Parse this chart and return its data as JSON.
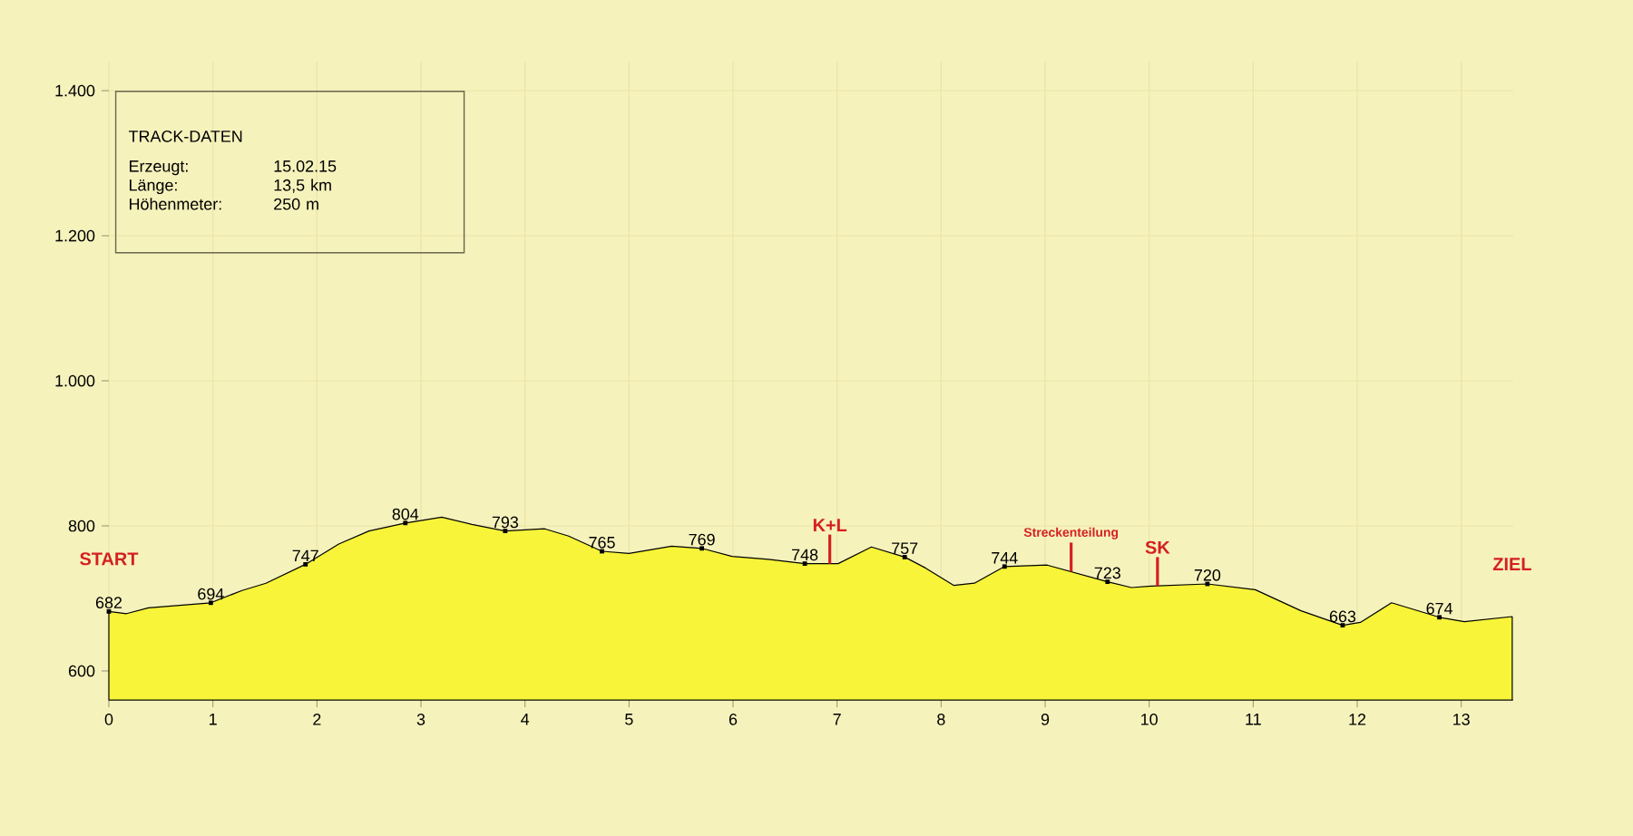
{
  "chart_data": {
    "type": "area",
    "color": "#f7f43a",
    "x": [
      0,
      0.17,
      0.38,
      0.98,
      1.28,
      1.51,
      1.89,
      2.21,
      2.5,
      2.85,
      3.2,
      3.49,
      3.81,
      4.19,
      4.42,
      4.74,
      5.0,
      5.41,
      5.7,
      5.99,
      6.34,
      6.69,
      7.01,
      7.33,
      7.65,
      7.85,
      8.12,
      8.32,
      8.61,
      9.02,
      9.6,
      9.83,
      10.02,
      10.56,
      11.02,
      11.46,
      11.86,
      12.03,
      12.33,
      12.79,
      13.03,
      13.49
    ],
    "values": [
      682,
      679,
      687,
      694,
      711,
      721,
      747,
      775,
      793,
      804,
      812,
      802,
      793,
      796,
      786,
      765,
      762,
      772,
      769,
      758,
      754,
      748,
      748,
      771,
      757,
      742,
      718,
      721,
      744,
      746,
      723,
      715,
      717,
      720,
      712,
      683,
      663,
      667,
      694,
      674,
      668,
      675
    ],
    "value_labels": [
      "682",
      null,
      null,
      "694",
      null,
      null,
      "747",
      null,
      null,
      "804",
      null,
      null,
      "793",
      null,
      null,
      "765",
      null,
      null,
      "769",
      null,
      null,
      "748",
      null,
      null,
      "757",
      null,
      null,
      null,
      "744",
      null,
      "723",
      null,
      null,
      "720",
      null,
      null,
      "663",
      null,
      null,
      "674",
      null,
      null
    ],
    "xlim": [
      0,
      13.5
    ],
    "xticks": [
      0,
      1,
      2,
      3,
      4,
      5,
      6,
      7,
      8,
      9,
      10,
      11,
      12,
      13
    ],
    "ylim": [
      560,
      1440
    ],
    "yticks": [
      600,
      800,
      {
        "value": 1000,
        "label": "1.000"
      },
      {
        "value": 1200,
        "label": "1.200"
      },
      {
        "value": 1400,
        "label": "1.400"
      }
    ],
    "grid": true,
    "annotations": [
      "TRACK-DATEN",
      "Erzeugt:",
      "15.02.15",
      "Länge:",
      "13,5 km",
      "Höhenmeter:",
      "250 m",
      {
        "text": "START",
        "x": 0,
        "y": 682
      },
      {
        "text": "K+L",
        "x": 6.93,
        "y": 748
      },
      {
        "text": "Streckenteilung",
        "x": 9.25,
        "y": 737
      },
      {
        "text": "SK",
        "x": 10.08,
        "y": 717
      },
      {
        "text": "ZIEL",
        "x": 13.49,
        "y": 675
      }
    ]
  }
}
